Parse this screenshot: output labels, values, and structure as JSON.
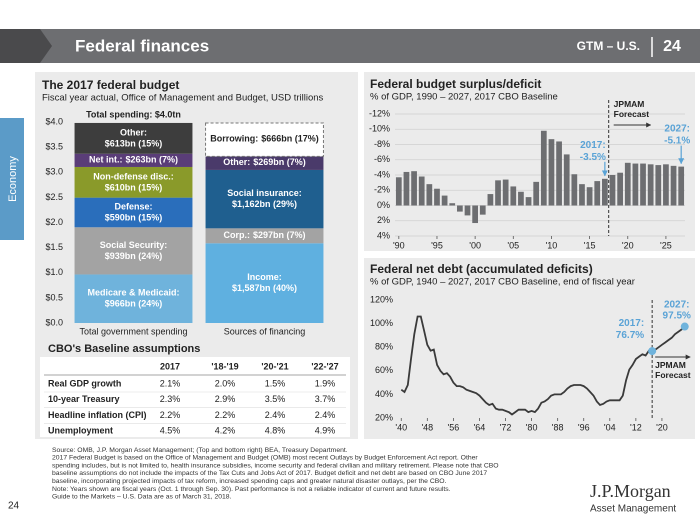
{
  "header": {
    "title": "Federal finances",
    "tag": "GTM – U.S.",
    "page": "24"
  },
  "side_tab": "Economy",
  "chart_data": [
    {
      "type": "stacked_bar",
      "title": "The 2017 federal budget",
      "subtitle": "Fiscal year actual, Office of Management and Budget, USD trillions",
      "categories": [
        "Total government spending",
        "Sources of financing"
      ],
      "ylim": [
        0,
        4
      ],
      "yticks": [
        {
          "value": 0,
          "label": "$0.0"
        },
        {
          "value": 0.5,
          "label": "$0.5"
        },
        {
          "value": 1,
          "label": "$1.0"
        },
        {
          "value": 1.5,
          "label": "$1.5"
        },
        {
          "value": 2,
          "label": "$2.0"
        },
        {
          "value": 2.5,
          "label": "$2.5"
        },
        {
          "value": 3,
          "label": "$3.0"
        },
        {
          "value": 3.5,
          "label": "$3.5"
        },
        {
          "value": 4,
          "label": "$4.0"
        }
      ],
      "stacks": [
        {
          "segments": [
            {
              "name": "Medicare & Medicaid:",
              "value_label": "$966bn (24%)",
              "value": 0.966,
              "color": "#6fb3dc"
            },
            {
              "name": "Social Security:",
              "value_label": "$939bn (24%)",
              "value": 0.939,
              "color": "#a3a3a3"
            },
            {
              "name": "Defense:",
              "value_label": "$590bn (15%)",
              "value": 0.59,
              "color": "#2a6ebb"
            },
            {
              "name": "Non-defense disc.:",
              "value_label": "$610bn (15%)",
              "value": 0.61,
              "color": "#8a9a2a"
            },
            {
              "name": "Net int.:",
              "value_label": "$263bn (7%)",
              "value": 0.263,
              "color": "#5a3d78"
            },
            {
              "name": "Other:",
              "value_label": "$613bn (15%)",
              "value": 0.613,
              "color": "#3d3d3d"
            }
          ]
        },
        {
          "segments": [
            {
              "name": "Income:",
              "value_label": "$1,587bn (40%)",
              "value": 1.587,
              "color": "#5fb0e0"
            },
            {
              "name": "Corp.:",
              "value_label": "$297bn (7%)",
              "value": 0.297,
              "color": "#a3a3a3"
            },
            {
              "name": "Social insurance:",
              "value_label": "$1,162bn (29%)",
              "value": 1.162,
              "color": "#1f5f8f"
            },
            {
              "name": "Other:",
              "value_label": "$269bn (7%)",
              "value": 0.269,
              "color": "#4a3a6a"
            },
            {
              "name": "Borrowing:",
              "value_label": "$666bn (17%)",
              "value": 0.666,
              "color": "#ffffff",
              "dashed": true
            }
          ]
        }
      ],
      "annotations": [
        {
          "text": "Total spending: $4.0tn"
        }
      ]
    },
    {
      "type": "bar",
      "title": "Federal budget surplus/deficit",
      "subtitle": "% of GDP, 1990 – 2027, 2017 CBO Baseline",
      "x": [
        1990,
        1991,
        1992,
        1993,
        1994,
        1995,
        1996,
        1997,
        1998,
        1999,
        2000,
        2001,
        2002,
        2003,
        2004,
        2005,
        2006,
        2007,
        2008,
        2009,
        2010,
        2011,
        2012,
        2013,
        2014,
        2015,
        2016,
        2017,
        2018,
        2019,
        2020,
        2021,
        2022,
        2023,
        2024,
        2025,
        2026,
        2027
      ],
      "values": [
        -3.7,
        -4.4,
        -4.5,
        -3.8,
        -2.8,
        -2.2,
        -1.3,
        -0.3,
        0.8,
        1.3,
        2.3,
        1.2,
        -1.5,
        -3.3,
        -3.4,
        -2.5,
        -1.8,
        -1.1,
        -3.1,
        -9.8,
        -8.7,
        -8.4,
        -6.7,
        -4.1,
        -2.8,
        -2.4,
        -3.2,
        -3.5,
        -4.0,
        -4.3,
        -5.6,
        -5.5,
        -5.5,
        -5.4,
        -5.3,
        -5.4,
        -5.2,
        -5.1
      ],
      "color": "#6d6e71",
      "grid": true,
      "xlim": [
        1989.5,
        2027.5
      ],
      "xticks": [
        {
          "value": 1990,
          "label": "'90"
        },
        {
          "value": 1995,
          "label": "'95"
        },
        {
          "value": 2000,
          "label": "'00"
        },
        {
          "value": 2005,
          "label": "'05"
        },
        {
          "value": 2010,
          "label": "'10"
        },
        {
          "value": 2015,
          "label": "'15"
        },
        {
          "value": 2020,
          "label": "'20"
        },
        {
          "value": 2025,
          "label": "'25"
        }
      ],
      "ylim": [
        4,
        -12
      ],
      "yticks": [
        {
          "value": -12,
          "label": "-12%"
        },
        {
          "value": -10,
          "label": "-10%"
        },
        {
          "value": -8,
          "label": "-8%"
        },
        {
          "value": -6,
          "label": "-6%"
        },
        {
          "value": -4,
          "label": "-4%"
        },
        {
          "value": -2,
          "label": "-2%"
        },
        {
          "value": 0,
          "label": "0%"
        },
        {
          "value": 2,
          "label": "2%"
        },
        {
          "value": 4,
          "label": "4%"
        }
      ],
      "annotations": [
        {
          "lines": [
            "2017:",
            "-3.5%"
          ],
          "x": 2017,
          "y": -3.5
        },
        {
          "lines": [
            "2027:",
            "-5.1%"
          ],
          "x": 2027,
          "y": -5.1
        },
        {
          "lines": [
            "JPMAM",
            "Forecast"
          ]
        }
      ]
    },
    {
      "type": "line",
      "title": "Federal net debt (accumulated deficits)",
      "subtitle": "% of GDP, 1940 – 2027, 2017 CBO Baseline, end of fiscal year",
      "x": [
        1940,
        1941,
        1942,
        1943,
        1944,
        1945,
        1946,
        1947,
        1948,
        1949,
        1950,
        1951,
        1952,
        1953,
        1954,
        1955,
        1956,
        1957,
        1958,
        1959,
        1960,
        1961,
        1962,
        1963,
        1964,
        1965,
        1966,
        1967,
        1968,
        1969,
        1970,
        1971,
        1972,
        1973,
        1974,
        1975,
        1976,
        1977,
        1978,
        1979,
        1980,
        1981,
        1982,
        1983,
        1984,
        1985,
        1986,
        1987,
        1988,
        1989,
        1990,
        1991,
        1992,
        1993,
        1994,
        1995,
        1996,
        1997,
        1998,
        1999,
        2000,
        2001,
        2002,
        2003,
        2004,
        2005,
        2006,
        2007,
        2008,
        2009,
        2010,
        2011,
        2012,
        2013,
        2014,
        2015,
        2016,
        2017,
        2018,
        2019,
        2020,
        2021,
        2022,
        2023,
        2024,
        2025,
        2026,
        2027
      ],
      "values": [
        44,
        42,
        48,
        70,
        91,
        106,
        106,
        94,
        82,
        77,
        78,
        65,
        60,
        57,
        58,
        55,
        50,
        47,
        47,
        46,
        44,
        43,
        42,
        41,
        39,
        36,
        33,
        31,
        32,
        28,
        27,
        27,
        26,
        25,
        23,
        25,
        27,
        27,
        27,
        25,
        26,
        25,
        28,
        33,
        34,
        36,
        39,
        40,
        40,
        40,
        42,
        45,
        47,
        48,
        48,
        48,
        47,
        45,
        42,
        39,
        34,
        31,
        32,
        34,
        35,
        35,
        35,
        35,
        39,
        52,
        61,
        65,
        70,
        72,
        74,
        73,
        77,
        76.7,
        78,
        80,
        82,
        84,
        86,
        88,
        91,
        93,
        95,
        97.5
      ],
      "color": "#3a3a3a",
      "marker_color": "#6fb3dc",
      "xlim": [
        1939,
        2028
      ],
      "xticks": [
        {
          "value": 1940,
          "label": "'40"
        },
        {
          "value": 1948,
          "label": "'48"
        },
        {
          "value": 1956,
          "label": "'56"
        },
        {
          "value": 1964,
          "label": "'64"
        },
        {
          "value": 1972,
          "label": "'72"
        },
        {
          "value": 1980,
          "label": "'80"
        },
        {
          "value": 1988,
          "label": "'88"
        },
        {
          "value": 1996,
          "label": "'96"
        },
        {
          "value": 2004,
          "label": "'04"
        },
        {
          "value": 2012,
          "label": "'12"
        },
        {
          "value": 2020,
          "label": "'20"
        }
      ],
      "ylim": [
        20,
        120
      ],
      "yticks": [
        {
          "value": 20,
          "label": "20%"
        },
        {
          "value": 40,
          "label": "40%"
        },
        {
          "value": 60,
          "label": "60%"
        },
        {
          "value": 80,
          "label": "80%"
        },
        {
          "value": 100,
          "label": "100%"
        },
        {
          "value": 120,
          "label": "120%"
        }
      ],
      "annotations": [
        {
          "lines": [
            "2017:",
            "76.7%"
          ],
          "x": 2017,
          "y": 76.7
        },
        {
          "lines": [
            "2027:",
            "97.5%"
          ],
          "x": 2027,
          "y": 97.5
        },
        {
          "lines": [
            "JPMAM",
            "Forecast"
          ]
        }
      ]
    }
  ],
  "table": {
    "title": "CBO's Baseline assumptions",
    "columns": [
      "2017",
      "'18-'19",
      "'20-'21",
      "'22-'27"
    ],
    "rows": [
      [
        "Real GDP growth",
        "2.1%",
        "2.0%",
        "1.5%",
        "1.9%"
      ],
      [
        "10-year Treasury",
        "2.3%",
        "2.9%",
        "3.5%",
        "3.7%"
      ],
      [
        "Headline inflation (CPI)",
        "2.2%",
        "2.2%",
        "2.4%",
        "2.4%"
      ],
      [
        "Unemployment",
        "4.5%",
        "4.2%",
        "4.8%",
        "4.9%"
      ]
    ]
  },
  "footnotes": [
    "Source: OMB, J.P. Morgan Asset Management; (Top and bottom right) BEA, Treasury Department.",
    "2017 Federal Budget is based on the Office of Management and Budget (OMB) most recent Outlays by Budget Enforcement Act report. Other",
    "spending includes, but is not limited to, health insurance subsidies, income security and federal civilian and military retirement. Please note that CBO",
    "baseline assumptions do not include the impacts of the Tax Cuts and Jobs Act of 2017. Budget deficit and net debt are based on CBO June 2017",
    "baseline, incorporating projected impacts of tax reform, increased spending caps and greater natural disaster outlays, per the CBO.",
    "Note: Years shown are fiscal years (Oct. 1 through Sep. 30). Past performance is not a reliable indicator of current and future results.",
    "Guide to the Markets – U.S. Data are as of March 31, 2018."
  ],
  "page_number": "24",
  "logo": {
    "name": "J.P.Morgan",
    "subtitle": "Asset Management"
  }
}
